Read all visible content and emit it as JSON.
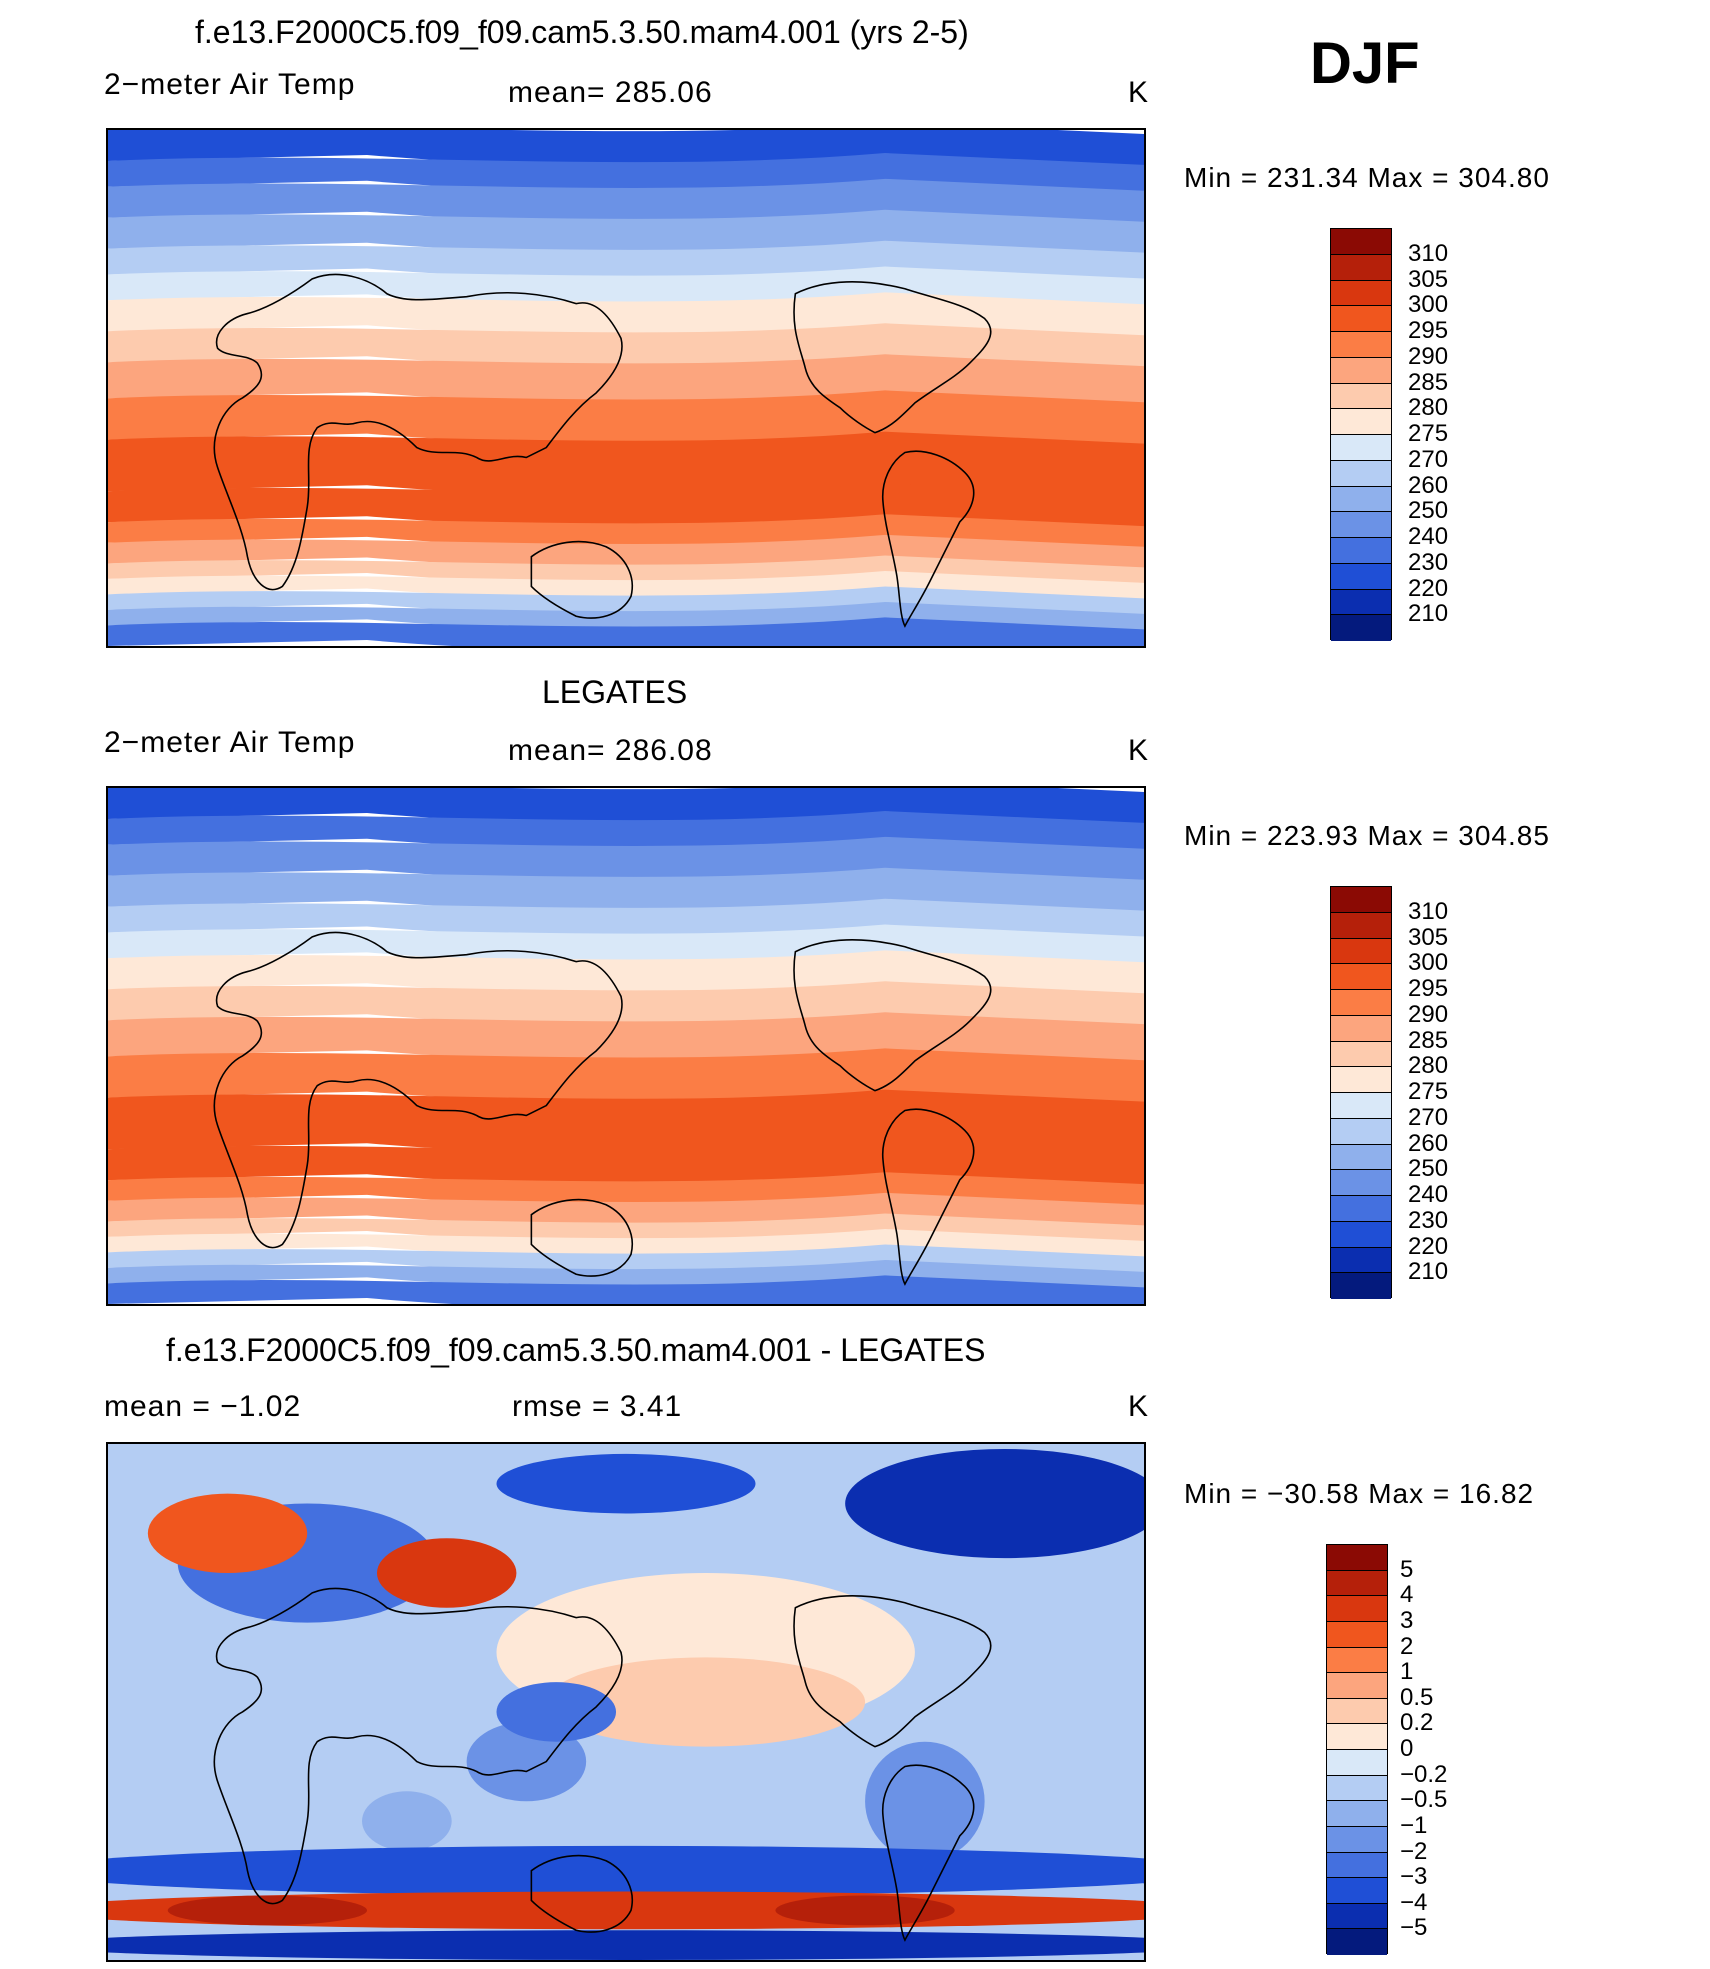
{
  "season": "DJF",
  "panels": [
    {
      "title": "f.e13.F2000C5.f09_f09.cam5.3.50.mam4.001 (yrs 2-5)",
      "left_label": "2−meter Air Temp",
      "center_label": "mean=  285.06",
      "units": "K",
      "minmax": "Min  =  231.34  Max  =  304.80",
      "colorbar": {
        "labels": [
          "310",
          "305",
          "300",
          "295",
          "290",
          "285",
          "280",
          "275",
          "270",
          "260",
          "250",
          "240",
          "230",
          "220",
          "210"
        ],
        "colors": [
          "#8b0a04",
          "#b5200a",
          "#d9370f",
          "#f0561e",
          "#fb7d45",
          "#fca57e",
          "#fdcbae",
          "#fee8d7",
          "#d9e8f8",
          "#b4cdf3",
          "#8fb0ec",
          "#6b92e6",
          "#4470df",
          "#1f4fd6",
          "#0b2eb0",
          "#041a7d"
        ]
      },
      "map_style": "mean"
    },
    {
      "title": "LEGATES",
      "left_label": "2−meter Air Temp",
      "center_label": "mean=  286.08",
      "units": "K",
      "minmax": "Min  =  223.93  Max  =  304.85",
      "colorbar": {
        "labels": [
          "310",
          "305",
          "300",
          "295",
          "290",
          "285",
          "280",
          "275",
          "270",
          "260",
          "250",
          "240",
          "230",
          "220",
          "210"
        ],
        "colors": [
          "#8b0a04",
          "#b5200a",
          "#d9370f",
          "#f0561e",
          "#fb7d45",
          "#fca57e",
          "#fdcbae",
          "#fee8d7",
          "#d9e8f8",
          "#b4cdf3",
          "#8fb0ec",
          "#6b92e6",
          "#4470df",
          "#1f4fd6",
          "#0b2eb0",
          "#041a7d"
        ]
      },
      "map_style": "mean"
    },
    {
      "title": "f.e13.F2000C5.f09_f09.cam5.3.50.mam4.001 - LEGATES",
      "left_label": "mean  =    −1.02",
      "center_label": "rmse  =     3.41",
      "units": "K",
      "minmax": "Min  =  −30.58  Max  =    16.82",
      "colorbar": {
        "labels": [
          "5",
          "4",
          "3",
          "2",
          "1",
          "0.5",
          "0.2",
          "0",
          "−0.2",
          "−0.5",
          "−1",
          "−2",
          "−3",
          "−4",
          "−5"
        ],
        "colors": [
          "#8b0a04",
          "#b5200a",
          "#d9370f",
          "#f0561e",
          "#fb7d45",
          "#fca57e",
          "#fdcbae",
          "#fee8d7",
          "#d9e8f8",
          "#b4cdf3",
          "#8fb0ec",
          "#6b92e6",
          "#4470df",
          "#1f4fd6",
          "#0b2eb0",
          "#041a7d"
        ]
      },
      "map_style": "diff"
    }
  ]
}
